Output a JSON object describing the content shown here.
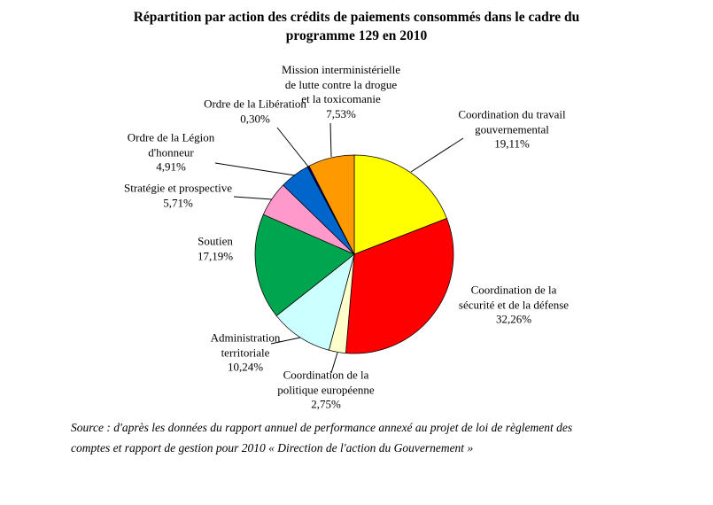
{
  "page": {
    "title_line1": "Répartition par action des crédits de paiements consommés dans le cadre du",
    "title_line2": "programme 129 en 2010",
    "source_line1": "Source : d'après les données du rapport annuel de performance annexé au projet de loi de règlement des",
    "source_line2": "comptes et rapport de gestion pour 2010 « Direction de l'action du Gouvernement »"
  },
  "chart_data": {
    "type": "pie",
    "title": "Répartition par action des crédits de paiements consommés dans le cadre du programme 129 en 2010",
    "unit": "%",
    "total": 100,
    "start_angle_deg": 0,
    "direction": "clockwise",
    "legend": "none",
    "background": "#ffffff",
    "slices": [
      {
        "name": "Coordination du travail gouvernemental",
        "value": 19.11,
        "pct_label": "19,11%",
        "color": "#FFFF00",
        "label_lines": [
          "Coordination du travail",
          "gouvernemental"
        ],
        "label_x": 578,
        "label_y": 146,
        "leader": [
          523,
          156,
          464,
          194
        ]
      },
      {
        "name": "Coordination de la sécurité et de la défense",
        "value": 32.26,
        "pct_label": "32,26%",
        "color": "#FF0000",
        "label_lines": [
          "Coordination de la",
          "sécurité et de la défense"
        ],
        "label_x": 580,
        "label_y": 344,
        "leader": null
      },
      {
        "name": "Coordination de la politique européenne",
        "value": 2.75,
        "pct_label": "2,75%",
        "color": "#FFFFCC",
        "label_lines": [
          "Coordination de la",
          "politique européenne"
        ],
        "label_x": 368,
        "label_y": 440,
        "leader": [
          374,
          421,
          381,
          398
        ]
      },
      {
        "name": "Administration territoriale",
        "value": 10.24,
        "pct_label": "10,24%",
        "color": "#CCFFFF",
        "label_lines": [
          "Administration",
          "territoriale"
        ],
        "label_x": 277,
        "label_y": 398,
        "leader": [
          306,
          388,
          339,
          381
        ]
      },
      {
        "name": "Soutien",
        "value": 17.19,
        "pct_label": "17,19%",
        "color": "#00A550",
        "label_lines": [
          "Soutien"
        ],
        "label_x": 243,
        "label_y": 281,
        "leader": null
      },
      {
        "name": "Stratégie et prospective",
        "value": 5.71,
        "pct_label": "5,71%",
        "color": "#FF99CC",
        "label_lines": [
          "Stratégie et prospective"
        ],
        "label_x": 201,
        "label_y": 221,
        "leader": [
          264,
          222,
          307,
          225
        ]
      },
      {
        "name": "Ordre de la Légion d'honneur",
        "value": 4.91,
        "pct_label": "4,91%",
        "color": "#0066CC",
        "label_lines": [
          "Ordre de la Légion",
          "d'honneur"
        ],
        "label_x": 193,
        "label_y": 172,
        "leader": [
          243,
          184,
          333,
          198
        ]
      },
      {
        "name": "Ordre de la Libération",
        "value": 0.3,
        "pct_label": "0,30%",
        "color": "#000080",
        "label_lines": [
          "Ordre de la Libération"
        ],
        "label_x": 288,
        "label_y": 126,
        "leader": [
          313,
          144,
          348,
          188
        ]
      },
      {
        "name": "Mission interministérielle de lutte contre la drogue et la toxicomanie",
        "value": 7.53,
        "pct_label": "7,53%",
        "color": "#FF9900",
        "label_lines": [
          "Mission interministérielle",
          "de lutte contre la drogue",
          "et la toxicomanie"
        ],
        "label_x": 385,
        "label_y": 104,
        "leader": [
          373,
          139,
          374,
          177
        ]
      }
    ]
  }
}
